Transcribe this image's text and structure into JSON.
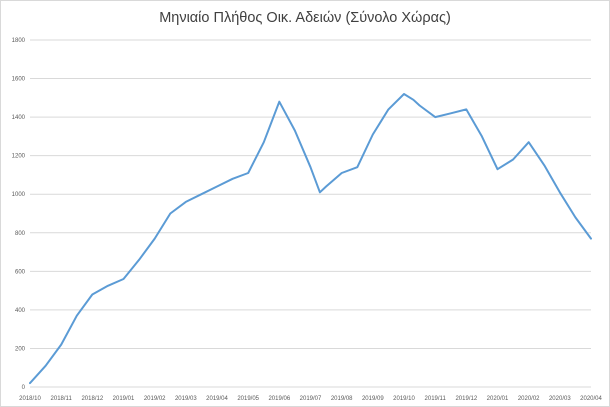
{
  "chart_data": {
    "type": "line",
    "title": "Μηνιαίο Πλήθος Οικ. Αδειών (Σύνολο Χώρας)",
    "xlabel": "",
    "ylabel": "",
    "ylim": [
      0,
      1800
    ],
    "y_ticks": [
      "0",
      "200",
      "400",
      "600",
      "800",
      "1000",
      "1200",
      "1400",
      "1600",
      "1800"
    ],
    "x_ticks": [
      "2018/10",
      "2018/11",
      "2018/12",
      "2019/01",
      "2019/02",
      "2019/03",
      "2019/04",
      "2019/05",
      "2019/06",
      "2019/07",
      "2019/08",
      "2019/09",
      "2019/10",
      "2019/11",
      "2019/12",
      "2020/01",
      "2020/02",
      "2020/03",
      "2020/04"
    ],
    "grid": true,
    "color": "#5b9bd5",
    "series": [
      {
        "x": [
          0,
          0.5,
          1,
          1.5,
          2,
          2.5,
          3,
          3.5,
          4,
          4.5,
          5,
          5.5,
          6,
          6.5,
          7,
          7.5,
          8,
          8.5,
          9,
          9.3,
          9.5,
          10,
          10.5,
          11,
          11.5,
          12,
          12.3,
          12.5,
          13,
          13.5,
          14,
          14.5,
          15,
          15.5,
          16,
          16.5,
          17,
          17.5,
          18
        ],
        "y": [
          20,
          110,
          220,
          370,
          480,
          525,
          560,
          660,
          770,
          900,
          960,
          1000,
          1040,
          1080,
          1110,
          1270,
          1480,
          1330,
          1140,
          1010,
          1040,
          1110,
          1140,
          1310,
          1440,
          1520,
          1490,
          1460,
          1400,
          1420,
          1440,
          1300,
          1130,
          1180,
          1270,
          1150,
          1010,
          880,
          770
        ]
      }
    ]
  }
}
